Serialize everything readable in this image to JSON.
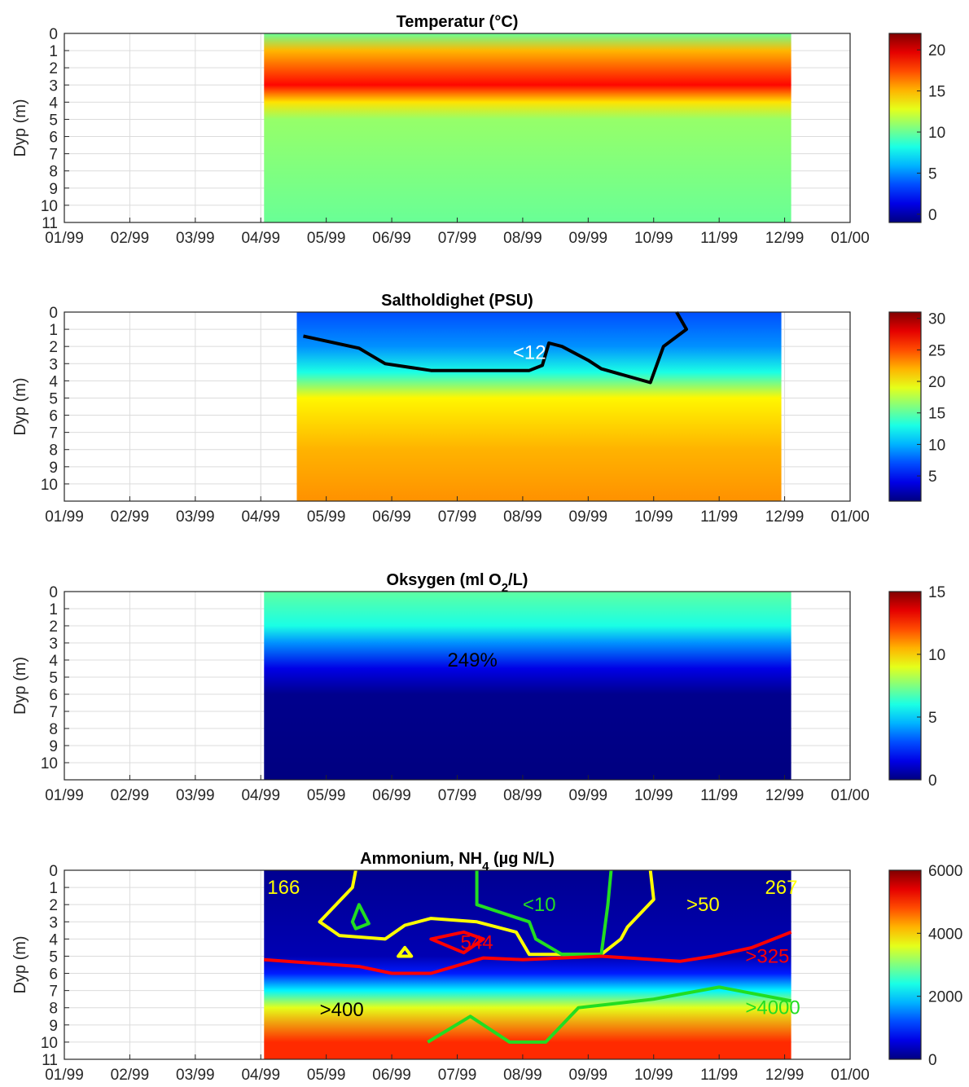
{
  "chart_data": [
    {
      "type": "heatmap",
      "title": "Temperatur (°C)",
      "title_sub": "",
      "title_after": "",
      "ylabel": "Dyp (m)",
      "xlim": [
        "01/99",
        "01/00"
      ],
      "x_ticks": [
        "01/99",
        "02/99",
        "03/99",
        "04/99",
        "05/99",
        "06/99",
        "07/99",
        "08/99",
        "09/99",
        "10/99",
        "11/99",
        "12/99",
        "01/00"
      ],
      "y_ticks": [
        0,
        1,
        2,
        3,
        4,
        5,
        6,
        7,
        8,
        9,
        10,
        11
      ],
      "ylim": [
        0,
        11
      ],
      "data_x_range": [
        "04/99 (early)",
        "12/99 (early)"
      ],
      "colorbar": {
        "min": -1,
        "max": 22,
        "ticks": [
          0,
          5,
          10,
          15,
          20
        ],
        "colormap": "jet"
      },
      "depth_profile": [
        {
          "depth": 0,
          "value": 10
        },
        {
          "depth": 1,
          "value": 15
        },
        {
          "depth": 3,
          "value": 19
        },
        {
          "depth": 4,
          "value": 14
        },
        {
          "depth": 5,
          "value": 11
        },
        {
          "depth": 11,
          "value": 10
        }
      ],
      "contours": [],
      "annotations": []
    },
    {
      "type": "heatmap",
      "title": "Saltholdighet (PSU)",
      "title_sub": "",
      "title_after": "",
      "ylabel": "Dyp (m)",
      "xlim": [
        "01/99",
        "01/00"
      ],
      "x_ticks": [
        "01/99",
        "02/99",
        "03/99",
        "04/99",
        "05/99",
        "06/99",
        "07/99",
        "08/99",
        "09/99",
        "10/99",
        "11/99",
        "12/99",
        "01/00"
      ],
      "y_ticks": [
        0,
        1,
        2,
        3,
        4,
        5,
        6,
        7,
        8,
        9,
        10
      ],
      "ylim": [
        0,
        11
      ],
      "data_x_range": [
        "05/99 (late April)",
        "12/99"
      ],
      "colorbar": {
        "min": 1,
        "max": 31,
        "ticks": [
          5,
          10,
          15,
          20,
          25,
          30
        ],
        "colormap": "jet"
      },
      "depth_profile": [
        {
          "depth": 0,
          "value": 7
        },
        {
          "depth": 2,
          "value": 9
        },
        {
          "depth": 3.5,
          "value": 13
        },
        {
          "depth": 5,
          "value": 20
        },
        {
          "depth": 8,
          "value": 22
        },
        {
          "depth": 11,
          "value": 23
        }
      ],
      "contours": [
        {
          "level": "12 PSU",
          "color": "#000000",
          "points": [
            {
              "month": 3.65,
              "depth": 1.4
            },
            {
              "month": 4.5,
              "depth": 2.1
            },
            {
              "month": 4.9,
              "depth": 3.0
            },
            {
              "month": 5.6,
              "depth": 3.4
            },
            {
              "month": 7.1,
              "depth": 3.4
            },
            {
              "month": 7.3,
              "depth": 3.1
            },
            {
              "month": 7.4,
              "depth": 1.8
            },
            {
              "month": 7.6,
              "depth": 2.0
            },
            {
              "month": 8.0,
              "depth": 2.8
            },
            {
              "month": 8.2,
              "depth": 3.3
            },
            {
              "month": 8.95,
              "depth": 4.1
            },
            {
              "month": 9.15,
              "depth": 2.0
            },
            {
              "month": 9.5,
              "depth": 1.0
            },
            {
              "month": 9.35,
              "depth": 0.0
            }
          ]
        }
      ],
      "annotations": [
        {
          "text": "<12",
          "color": "#ffffff",
          "month": 6.85,
          "depth": 2.35
        }
      ]
    },
    {
      "type": "heatmap",
      "title": "Oksygen (ml O",
      "title_sub": "2",
      "title_after": "/L)",
      "ylabel": "Dyp (m)",
      "xlim": [
        "01/99",
        "01/00"
      ],
      "x_ticks": [
        "01/99",
        "02/99",
        "03/99",
        "04/99",
        "05/99",
        "06/99",
        "07/99",
        "08/99",
        "09/99",
        "10/99",
        "11/99",
        "12/99",
        "01/00"
      ],
      "y_ticks": [
        0,
        1,
        2,
        3,
        4,
        5,
        6,
        7,
        8,
        9,
        10
      ],
      "ylim": [
        0,
        11
      ],
      "data_x_range": [
        "04/99 (early)",
        "12/99 (early)"
      ],
      "colorbar": {
        "min": 0,
        "max": 15,
        "ticks": [
          0,
          5,
          10,
          15
        ],
        "colormap": "jet"
      },
      "depth_profile": [
        {
          "depth": 0,
          "value": 7
        },
        {
          "depth": 2,
          "value": 6
        },
        {
          "depth": 3,
          "value": 4
        },
        {
          "depth": 4.5,
          "value": 1.5
        },
        {
          "depth": 6,
          "value": 0.2
        },
        {
          "depth": 11,
          "value": 0
        }
      ],
      "contours": [],
      "annotations": [
        {
          "text": "249%",
          "color": "#000000",
          "month": 5.85,
          "depth": 4.0
        }
      ]
    },
    {
      "type": "heatmap",
      "title": "Ammonium, NH",
      "title_sub": "4",
      "title_after": " (µg N/L)",
      "ylabel": "Dyp (m)",
      "xlim": [
        "01/99",
        "01/00"
      ],
      "x_ticks": [
        "01/99",
        "02/99",
        "03/99",
        "04/99",
        "05/99",
        "06/99",
        "07/99",
        "08/99",
        "09/99",
        "10/99",
        "11/99",
        "12/99",
        "01/00"
      ],
      "y_ticks": [
        0,
        1,
        2,
        3,
        4,
        5,
        6,
        7,
        8,
        9,
        10,
        11
      ],
      "ylim": [
        0,
        11
      ],
      "data_x_range": [
        "04/99 (early)",
        "12/99 (early)"
      ],
      "colorbar": {
        "min": 0,
        "max": 6000,
        "ticks": [
          0,
          2000,
          4000,
          6000
        ],
        "colormap": "jet"
      },
      "depth_profile": [
        {
          "depth": 0,
          "value": 100
        },
        {
          "depth": 5,
          "value": 300
        },
        {
          "depth": 6,
          "value": 900
        },
        {
          "depth": 7,
          "value": 2200
        },
        {
          "depth": 8,
          "value": 3600
        },
        {
          "depth": 10,
          "value": 5000
        }
      ],
      "contours": [
        {
          "level": "50",
          "color": "#ffff00",
          "points": [
            {
              "month": 4.45,
              "depth": 0.0
            },
            {
              "month": 4.4,
              "depth": 1.0
            },
            {
              "month": 3.9,
              "depth": 3.0
            },
            {
              "month": 4.2,
              "depth": 3.8
            },
            {
              "month": 4.9,
              "depth": 4.0
            },
            {
              "month": 5.2,
              "depth": 3.2
            },
            {
              "month": 5.6,
              "depth": 2.8
            },
            {
              "month": 6.3,
              "depth": 3.0
            },
            {
              "month": 6.9,
              "depth": 3.6
            },
            {
              "month": 7.1,
              "depth": 4.9
            },
            {
              "month": 8.2,
              "depth": 4.9
            },
            {
              "month": 8.5,
              "depth": 4.0
            },
            {
              "month": 8.6,
              "depth": 3.3
            },
            {
              "month": 9.0,
              "depth": 1.7
            },
            {
              "month": 8.95,
              "depth": 0.0
            }
          ]
        },
        {
          "level": "10",
          "color": "#22dd22",
          "points": [
            {
              "month": 6.3,
              "depth": 0.0
            },
            {
              "month": 6.3,
              "depth": 2.0
            },
            {
              "month": 7.1,
              "depth": 3.0
            },
            {
              "month": 7.2,
              "depth": 4.0
            },
            {
              "month": 7.6,
              "depth": 4.9
            },
            {
              "month": 8.2,
              "depth": 4.9
            },
            {
              "month": 8.3,
              "depth": 2.0
            },
            {
              "month": 8.35,
              "depth": 0.0
            }
          ]
        },
        {
          "level": "10 (closed)",
          "color": "#22dd22",
          "closed": true,
          "points": [
            {
              "month": 4.5,
              "depth": 2.0
            },
            {
              "month": 4.65,
              "depth": 3.1
            },
            {
              "month": 4.45,
              "depth": 3.4
            },
            {
              "month": 4.4,
              "depth": 3.0
            }
          ]
        },
        {
          "level": "325",
          "color": "#ff0000",
          "points": [
            {
              "month": 3.05,
              "depth": 5.2
            },
            {
              "month": 4.5,
              "depth": 5.6
            },
            {
              "month": 5.0,
              "depth": 6.0
            },
            {
              "month": 5.6,
              "depth": 6.0
            },
            {
              "month": 6.4,
              "depth": 5.1
            },
            {
              "month": 7.0,
              "depth": 5.2
            },
            {
              "month": 8.2,
              "depth": 5.0
            },
            {
              "month": 9.4,
              "depth": 5.3
            },
            {
              "month": 9.9,
              "depth": 5.0
            },
            {
              "month": 10.5,
              "depth": 4.5
            },
            {
              "month": 11.1,
              "depth": 3.6
            }
          ]
        },
        {
          "level": "544",
          "color": "#ff0000",
          "closed": true,
          "points": [
            {
              "month": 5.6,
              "depth": 4.0
            },
            {
              "month": 6.1,
              "depth": 3.6
            },
            {
              "month": 6.4,
              "depth": 4.0
            },
            {
              "month": 6.1,
              "depth": 4.8
            }
          ]
        },
        {
          "level": "4000",
          "color": "#22dd22",
          "points": [
            {
              "month": 5.55,
              "depth": 10.0
            },
            {
              "month": 6.2,
              "depth": 8.5
            },
            {
              "month": 6.8,
              "depth": 10.0
            },
            {
              "month": 7.35,
              "depth": 10.0
            },
            {
              "month": 7.85,
              "depth": 8.0
            },
            {
              "month": 9.0,
              "depth": 7.5
            },
            {
              "month": 10.0,
              "depth": 6.8
            },
            {
              "month": 11.1,
              "depth": 7.6
            }
          ]
        },
        {
          "level": "small",
          "color": "#ffff00",
          "closed": true,
          "points": [
            {
              "month": 5.2,
              "depth": 4.5
            },
            {
              "month": 5.3,
              "depth": 5.0
            },
            {
              "month": 5.1,
              "depth": 5.0
            }
          ]
        }
      ],
      "annotations": [
        {
          "text": "166",
          "color": "#ffff00",
          "month": 3.1,
          "depth": 1.0
        },
        {
          "text": "<10",
          "color": "#22dd22",
          "month": 7.0,
          "depth": 2.0
        },
        {
          "text": ">50",
          "color": "#ffff00",
          "month": 9.5,
          "depth": 2.0
        },
        {
          "text": "267",
          "color": "#ffff00",
          "month": 10.7,
          "depth": 1.0
        },
        {
          "text": "544",
          "color": "#ff0000",
          "month": 6.05,
          "depth": 4.2
        },
        {
          "text": ">325",
          "color": "#ff0000",
          "month": 10.4,
          "depth": 5.0
        },
        {
          "text": ">400",
          "color": "#000000",
          "month": 3.9,
          "depth": 8.1
        },
        {
          "text": ">4000",
          "color": "#22dd22",
          "month": 10.4,
          "depth": 8.0
        }
      ]
    }
  ]
}
